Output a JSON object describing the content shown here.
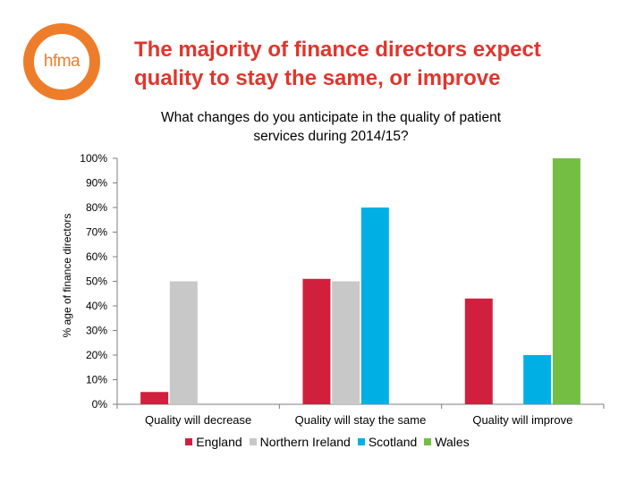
{
  "logo": {
    "text": "hfma"
  },
  "slide": {
    "title_line1": "The majority of finance directors expect",
    "title_line2": "quality to stay the same, or improve"
  },
  "colors": {
    "title": "#e1352c",
    "logo": "#ee7d2b",
    "England": "#d1203e",
    "Northern Ireland": "#c8c8c8",
    "Scotland": "#00b0e5",
    "Wales": "#74bf43",
    "axis": "#7f7f7f"
  },
  "chart_data": {
    "type": "bar",
    "title_line1": "What changes do you anticipate in the quality of patient",
    "title_line2": "services during 2014/15?",
    "xlabel": "",
    "ylabel": "% age of finance directors",
    "ylim": [
      0,
      100
    ],
    "yticks": [
      0,
      10,
      20,
      30,
      40,
      50,
      60,
      70,
      80,
      90,
      100
    ],
    "ytick_labels": [
      "0%",
      "10%",
      "20%",
      "30%",
      "40%",
      "50%",
      "60%",
      "70%",
      "80%",
      "90%",
      "100%"
    ],
    "categories": [
      "Quality will decrease",
      "Quality will stay the same",
      "Quality will improve"
    ],
    "series": [
      {
        "name": "England",
        "values": [
          5,
          51,
          43
        ]
      },
      {
        "name": "Northern Ireland",
        "values": [
          50,
          50,
          0
        ]
      },
      {
        "name": "Scotland",
        "values": [
          0,
          80,
          20
        ]
      },
      {
        "name": "Wales",
        "values": [
          0,
          0,
          100
        ]
      }
    ],
    "grid": false,
    "legend_position": "bottom"
  }
}
